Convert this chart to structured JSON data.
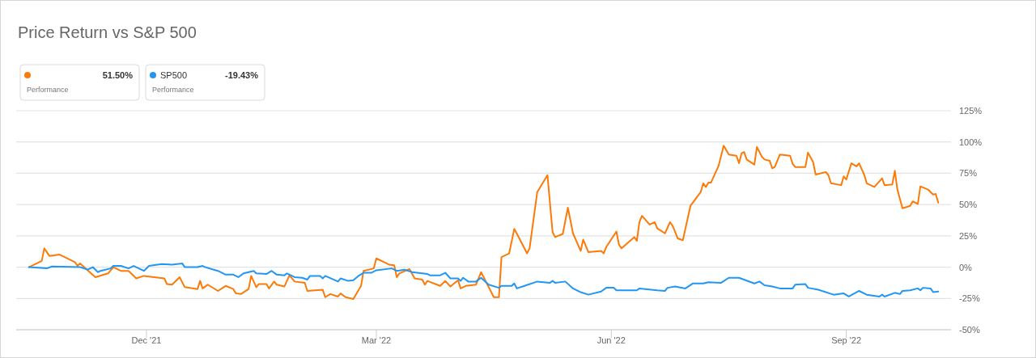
{
  "chart_data": {
    "type": "line",
    "title": "Price Return vs S&P 500",
    "xlim": [
      "2021-10-11",
      "2022-10-12"
    ],
    "xticks": [
      {
        "value": "2021-12-01",
        "label": "Dec '21"
      },
      {
        "value": "2022-03-01",
        "label": "Mar '22"
      },
      {
        "value": "2022-06-01",
        "label": "Jun '22"
      },
      {
        "value": "2022-09-01",
        "label": "Sep '22"
      }
    ],
    "ylim": [
      -50,
      125
    ],
    "yticks": [
      {
        "value": -50,
        "label": "-50%"
      },
      {
        "value": -25,
        "label": "-25%"
      },
      {
        "value": 0,
        "label": "0%"
      },
      {
        "value": 25,
        "label": "25%"
      },
      {
        "value": 50,
        "label": "50%"
      },
      {
        "value": 75,
        "label": "75%"
      },
      {
        "value": 100,
        "label": "100%"
      },
      {
        "value": 125,
        "label": "125%"
      }
    ],
    "grid": "y",
    "legend": "top left",
    "annotations": [
      "51.50%",
      "Performance",
      "-19.43%",
      "Performance"
    ],
    "series": [
      {
        "color": "#fb7a08",
        "x": [
          "2021-10-16",
          "2021-10-21",
          "2021-10-22",
          "2021-10-24",
          "2021-10-28",
          "2021-10-30",
          "2021-11-03",
          "2021-11-04",
          "2021-11-05",
          "2021-11-11",
          "2021-11-16",
          "2021-11-18",
          "2021-11-21",
          "2021-11-24",
          "2021-11-27",
          "2021-11-30",
          "2021-12-08",
          "2021-12-09",
          "2021-12-11",
          "2021-12-14",
          "2021-12-16",
          "2021-12-21",
          "2021-12-22",
          "2021-12-23",
          "2021-12-25",
          "2021-12-29",
          "2022-01-01",
          "2022-01-04",
          "2022-01-05",
          "2022-01-07",
          "2022-01-10",
          "2022-01-11",
          "2022-01-13",
          "2022-01-14",
          "2022-01-17",
          "2022-01-18",
          "2022-01-20",
          "2022-01-21",
          "2022-01-24",
          "2022-01-26",
          "2022-01-28",
          "2022-02-01",
          "2022-02-02",
          "2022-02-08",
          "2022-02-09",
          "2022-02-11",
          "2022-02-14",
          "2022-02-15",
          "2022-02-17",
          "2022-02-20",
          "2022-02-23",
          "2022-02-24",
          "2022-02-28",
          "2022-03-01",
          "2022-03-06",
          "2022-03-08",
          "2022-03-09",
          "2022-03-10",
          "2022-03-14",
          "2022-03-16",
          "2022-03-19",
          "2022-03-20",
          "2022-03-21",
          "2022-03-26",
          "2022-03-28",
          "2022-03-30",
          "2022-04-02",
          "2022-04-03",
          "2022-04-05",
          "2022-04-09",
          "2022-04-11",
          "2022-04-16",
          "2022-04-18",
          "2022-04-19",
          "2022-04-22",
          "2022-04-24",
          "2022-04-26",
          "2022-04-29",
          "2022-04-30",
          "2022-05-03",
          "2022-05-07",
          "2022-05-09",
          "2022-05-10",
          "2022-05-13",
          "2022-05-15",
          "2022-05-17",
          "2022-05-20",
          "2022-05-21",
          "2022-05-23",
          "2022-05-28",
          "2022-05-29",
          "2022-05-30",
          "2022-06-03",
          "2022-06-04",
          "2022-06-05",
          "2022-06-10",
          "2022-06-11",
          "2022-06-12",
          "2022-06-13",
          "2022-06-16",
          "2022-06-18",
          "2022-06-19",
          "2022-06-22",
          "2022-06-24",
          "2022-06-25",
          "2022-06-27",
          "2022-06-29",
          "2022-07-02",
          "2022-07-06",
          "2022-07-07",
          "2022-07-08",
          "2022-07-09",
          "2022-07-10",
          "2022-07-13",
          "2022-07-15",
          "2022-07-17",
          "2022-07-20",
          "2022-07-21",
          "2022-07-22",
          "2022-07-23",
          "2022-07-24",
          "2022-07-27",
          "2022-07-28",
          "2022-07-30",
          "2022-07-31",
          "2022-08-02",
          "2022-08-03",
          "2022-08-04",
          "2022-08-06",
          "2022-08-10",
          "2022-08-11",
          "2022-08-12",
          "2022-08-16",
          "2022-08-17",
          "2022-08-19",
          "2022-08-20",
          "2022-08-24",
          "2022-08-25",
          "2022-08-26",
          "2022-08-30",
          "2022-08-31",
          "2022-09-01",
          "2022-09-03",
          "2022-09-05",
          "2022-09-06",
          "2022-09-08",
          "2022-09-09",
          "2022-09-12",
          "2022-09-15",
          "2022-09-16",
          "2022-09-19",
          "2022-09-20",
          "2022-09-21",
          "2022-09-23",
          "2022-09-26",
          "2022-09-27",
          "2022-09-29",
          "2022-09-30",
          "2022-10-03",
          "2022-10-05",
          "2022-10-06",
          "2022-10-07"
        ],
        "values": [
          0,
          5,
          15,
          9,
          10,
          8,
          4,
          1,
          3,
          -8,
          -5,
          0,
          -3,
          -3,
          -9,
          -7,
          -9,
          -13.5,
          -14,
          -8,
          -16,
          -17.5,
          -11,
          -17,
          -14,
          -19,
          -15,
          -17.5,
          -21,
          -21.5,
          -17.5,
          -7,
          -16,
          -13.5,
          -13.5,
          -17,
          -11.5,
          -14,
          -15.5,
          -6.5,
          -11.5,
          -12.5,
          -19,
          -18,
          -24,
          -21.5,
          -23.5,
          -21,
          -24,
          -25.5,
          -15,
          -3,
          -1,
          7,
          2,
          1.5,
          -8,
          -5,
          -1.5,
          -9,
          -10,
          -14,
          -11,
          -15,
          -11,
          -15.5,
          -10.5,
          -17,
          -15,
          -14,
          -4,
          -24,
          -24,
          8,
          11,
          30.5,
          23,
          11,
          15,
          60,
          73.5,
          28,
          24,
          26.5,
          47.5,
          27,
          13,
          22,
          12,
          13,
          11,
          16,
          28.5,
          18,
          15,
          24,
          21,
          36,
          41,
          34,
          36,
          31,
          27,
          36,
          33,
          23,
          21.5,
          49,
          60,
          67,
          64,
          67.5,
          67.5,
          81,
          97,
          90,
          89,
          83,
          91,
          92,
          86,
          82,
          96,
          88,
          86,
          85,
          79,
          80,
          90,
          89,
          82.5,
          80,
          80,
          91.5,
          84,
          74,
          76,
          73.5,
          67,
          65.5,
          72.5,
          70,
          83,
          80.5,
          83,
          74,
          67,
          64,
          71,
          65.5,
          66,
          77,
          62,
          47,
          49,
          52.5,
          50.5,
          64.5,
          62,
          58,
          58.5,
          51.5
        ]
      },
      {
        "name": "SP500",
        "color": "#2196f3",
        "x": [
          "2021-10-16",
          "2021-10-23",
          "2021-10-25",
          "2021-11-05",
          "2021-11-08",
          "2021-11-10",
          "2021-11-12",
          "2021-11-13",
          "2021-11-17",
          "2021-11-18",
          "2021-11-21",
          "2021-11-24",
          "2021-11-26",
          "2021-11-30",
          "2021-12-02",
          "2021-12-07",
          "2021-12-11",
          "2021-12-15",
          "2021-12-16",
          "2021-12-21",
          "2021-12-23",
          "2021-12-24",
          "2021-12-29",
          "2022-01-01",
          "2022-01-04",
          "2022-01-06",
          "2022-01-08",
          "2022-01-12",
          "2022-01-13",
          "2022-01-17",
          "2022-01-19",
          "2022-01-21",
          "2022-01-24",
          "2022-01-25",
          "2022-01-28",
          "2022-01-31",
          "2022-02-02",
          "2022-02-03",
          "2022-02-07",
          "2022-02-08",
          "2022-02-09",
          "2022-02-14",
          "2022-02-15",
          "2022-02-18",
          "2022-02-20",
          "2022-02-22",
          "2022-02-24",
          "2022-02-27",
          "2022-03-01",
          "2022-03-07",
          "2022-03-09",
          "2022-03-12",
          "2022-03-15",
          "2022-03-21",
          "2022-03-22",
          "2022-03-26",
          "2022-03-28",
          "2022-03-30",
          "2022-04-02",
          "2022-04-03",
          "2022-04-04",
          "2022-04-06",
          "2022-04-09",
          "2022-04-11",
          "2022-04-14",
          "2022-04-18",
          "2022-04-19",
          "2022-04-23",
          "2022-04-24",
          "2022-04-25",
          "2022-04-28",
          "2022-05-03",
          "2022-05-08",
          "2022-05-09",
          "2022-05-10",
          "2022-05-14",
          "2022-05-17",
          "2022-05-20",
          "2022-05-23",
          "2022-05-28",
          "2022-05-30",
          "2022-06-02",
          "2022-06-03",
          "2022-06-06",
          "2022-06-11",
          "2022-06-12",
          "2022-06-19",
          "2022-06-22",
          "2022-06-23",
          "2022-06-26",
          "2022-06-30",
          "2022-07-03",
          "2022-07-07",
          "2022-07-09",
          "2022-07-14",
          "2022-07-17",
          "2022-07-21",
          "2022-07-27",
          "2022-07-29",
          "2022-07-31",
          "2022-08-03",
          "2022-08-06",
          "2022-08-11",
          "2022-08-12",
          "2022-08-16",
          "2022-08-17",
          "2022-08-21",
          "2022-08-27",
          "2022-08-31",
          "2022-09-02",
          "2022-09-06",
          "2022-09-09",
          "2022-09-14",
          "2022-09-15",
          "2022-09-16",
          "2022-09-20",
          "2022-09-22",
          "2022-09-23",
          "2022-09-26",
          "2022-09-29",
          "2022-09-30",
          "2022-10-01",
          "2022-10-04",
          "2022-10-05",
          "2022-10-07"
        ],
        "values": [
          0,
          -1,
          0.5,
          0,
          -2,
          0,
          -4,
          -3,
          -1,
          1,
          1,
          -1,
          1,
          -3,
          1,
          2.5,
          2,
          3,
          0,
          0,
          1,
          0,
          -3,
          -6,
          -6,
          -8,
          -5,
          -3,
          -5,
          -5.5,
          -3,
          -6,
          -6.5,
          -5,
          -8,
          -8.5,
          -10,
          -7,
          -7,
          -9,
          -7,
          -11.5,
          -9,
          -11,
          -10.5,
          -7,
          -4.5,
          -4.5,
          -2.5,
          -1,
          -3,
          -2,
          -4,
          -5.5,
          -6.5,
          -6.5,
          -4.5,
          -9,
          -9,
          -11,
          -8.5,
          -11.5,
          -11.5,
          -8.5,
          -14,
          -16.5,
          -15,
          -15,
          -13,
          -17,
          -15,
          -11.5,
          -12.5,
          -11,
          -12.5,
          -11.5,
          -17,
          -20,
          -22,
          -19.5,
          -16.5,
          -16.5,
          -18.5,
          -18.5,
          -18.5,
          -17,
          -18.5,
          -19,
          -16.5,
          -15.5,
          -17,
          -13,
          -13,
          -12,
          -12.5,
          -8.5,
          -8.5,
          -13,
          -11.5,
          -14.5,
          -15.5,
          -17,
          -17,
          -14,
          -13.5,
          -16.5,
          -18,
          -22,
          -21,
          -23.5,
          -19,
          -22,
          -23.5,
          -22,
          -23.5,
          -20.5,
          -21.5,
          -19,
          -18.5,
          -17,
          -18.5,
          -16.5,
          -17,
          -20,
          -19.5
        ]
      }
    ]
  }
}
